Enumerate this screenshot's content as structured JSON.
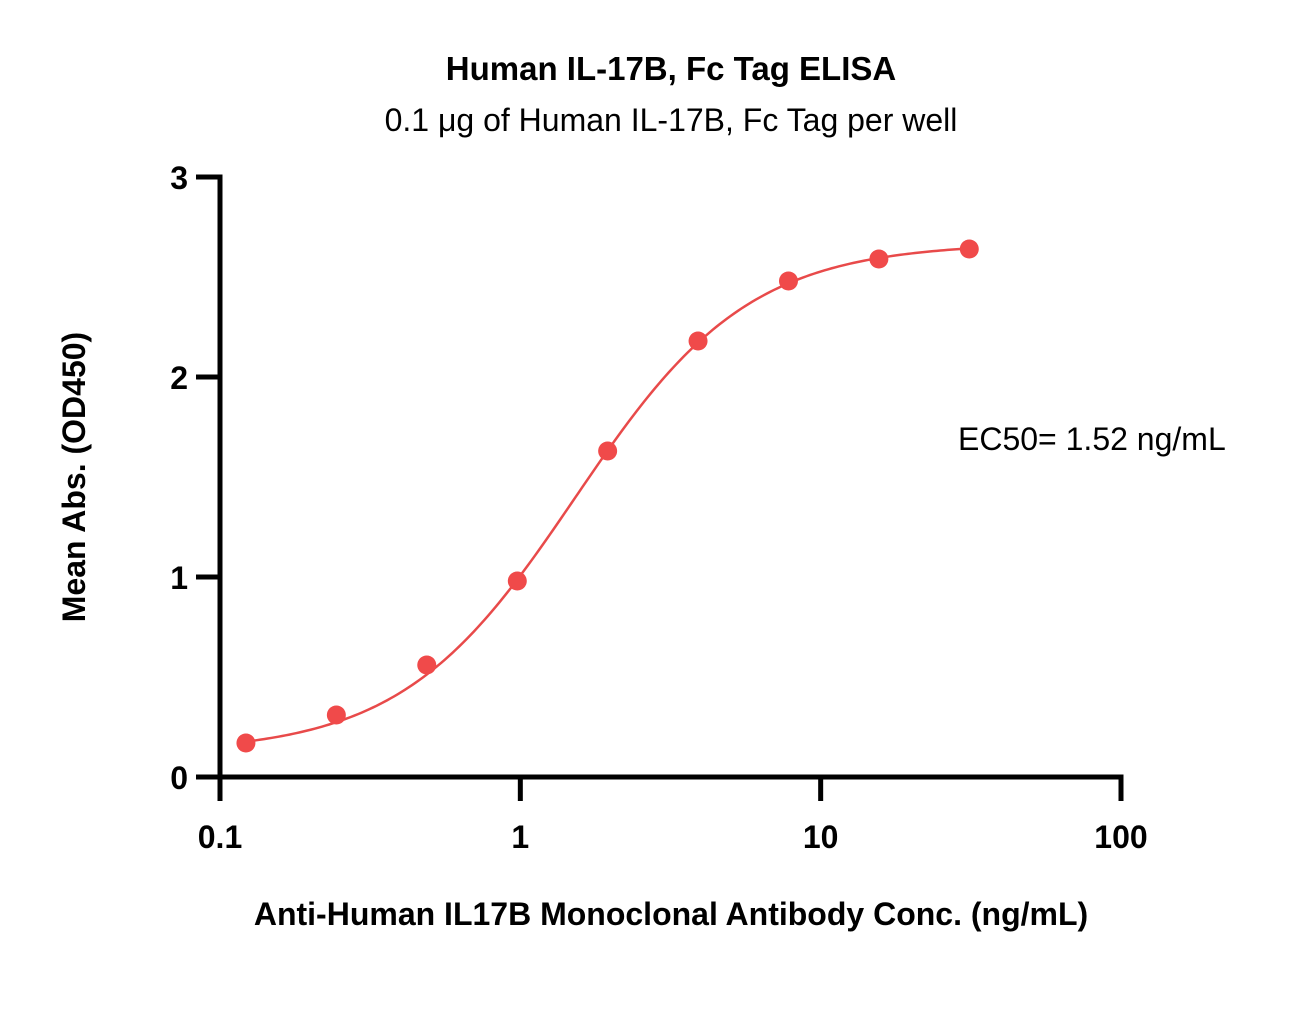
{
  "chart_data": {
    "type": "scatter",
    "title": "Human IL-17B, Fc Tag ELISA",
    "subtitle": "0.1 μg of Human IL-17B, Fc Tag per well",
    "xlabel": "Anti-Human IL17B Monoclonal Antibody Conc. (ng/mL)",
    "ylabel": "Mean Abs. (OD450)",
    "xscale": "log",
    "xlim": [
      0.1,
      100
    ],
    "ylim": [
      0,
      3
    ],
    "xticks": [
      0.1,
      1,
      10,
      100
    ],
    "xtick_labels": [
      "0.1",
      "1",
      "10",
      "100"
    ],
    "yticks": [
      0,
      1,
      2,
      3
    ],
    "ytick_labels": [
      "0",
      "1",
      "2",
      "3"
    ],
    "grid": false,
    "point_color": "#f04a4a",
    "curve_color": "#e84a4a",
    "series": [
      {
        "x": [
          0.122,
          0.244,
          0.488,
          0.977,
          1.953,
          3.906,
          7.813,
          15.625,
          31.25
        ],
        "y": [
          0.17,
          0.31,
          0.56,
          0.98,
          1.63,
          2.18,
          2.48,
          2.59,
          2.64
        ]
      }
    ],
    "fit": {
      "type": "4PL",
      "bottom": 0.12,
      "top": 2.67,
      "ec50": 1.52,
      "hill": 1.5
    },
    "annotation": "EC50= 1.52 ng/mL"
  }
}
